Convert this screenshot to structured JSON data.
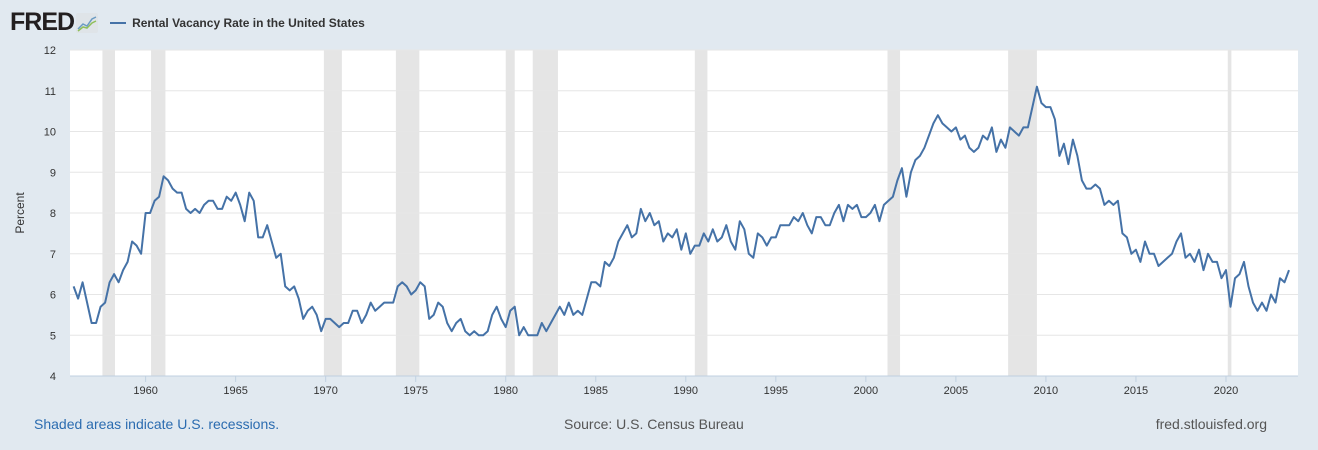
{
  "header": {
    "logo": "FRED",
    "legend_label": "Rental Vacancy Rate in the United States"
  },
  "footer": {
    "recessions": "Shaded areas indicate U.S. recessions.",
    "source": "Source: U.S. Census Bureau",
    "site": "fred.stlouisfed.org"
  },
  "colors": {
    "line": "#4572a7",
    "recession": "#e5e5e5",
    "background": "#e1e9f0"
  },
  "chart_data": {
    "type": "line",
    "title": "Rental Vacancy Rate in the United States",
    "ylabel": "Percent",
    "xlabel": "",
    "ylim": [
      4,
      12
    ],
    "xlim": [
      1955.8,
      2024.0
    ],
    "yticks": [
      4,
      5,
      6,
      7,
      8,
      9,
      10,
      11,
      12
    ],
    "xticks": [
      1960,
      1965,
      1970,
      1975,
      1980,
      1985,
      1990,
      1995,
      2000,
      2005,
      2010,
      2015,
      2020
    ],
    "grid": true,
    "start": 1956,
    "frequency": "quarterly",
    "recessions": [
      [
        1957.6,
        1958.3
      ],
      [
        1960.3,
        1961.1
      ],
      [
        1969.9,
        1970.9
      ],
      [
        1973.9,
        1975.2
      ],
      [
        1980.0,
        1980.5
      ],
      [
        1981.5,
        1982.9
      ],
      [
        1990.5,
        1991.2
      ],
      [
        2001.2,
        2001.9
      ],
      [
        2007.9,
        2009.5
      ],
      [
        2020.1,
        2020.3
      ]
    ],
    "series": [
      {
        "name": "Rental Vacancy Rate in the United States",
        "values": [
          6.2,
          5.9,
          6.3,
          5.8,
          5.3,
          5.3,
          5.7,
          5.8,
          6.3,
          6.5,
          6.3,
          6.6,
          6.8,
          7.3,
          7.2,
          7.0,
          8.0,
          8.0,
          8.3,
          8.4,
          8.9,
          8.8,
          8.6,
          8.5,
          8.5,
          8.1,
          8.0,
          8.1,
          8.0,
          8.2,
          8.3,
          8.3,
          8.1,
          8.1,
          8.4,
          8.3,
          8.5,
          8.2,
          7.8,
          8.5,
          8.3,
          7.4,
          7.4,
          7.7,
          7.3,
          6.9,
          7.0,
          6.2,
          6.1,
          6.2,
          5.9,
          5.4,
          5.6,
          5.7,
          5.5,
          5.1,
          5.4,
          5.4,
          5.3,
          5.2,
          5.3,
          5.3,
          5.6,
          5.6,
          5.3,
          5.5,
          5.8,
          5.6,
          5.7,
          5.8,
          5.8,
          5.8,
          6.2,
          6.3,
          6.2,
          6.0,
          6.1,
          6.3,
          6.2,
          5.4,
          5.5,
          5.8,
          5.7,
          5.3,
          5.1,
          5.3,
          5.4,
          5.1,
          5.0,
          5.1,
          5.0,
          5.0,
          5.1,
          5.5,
          5.7,
          5.4,
          5.2,
          5.6,
          5.7,
          5.0,
          5.2,
          5.0,
          5.0,
          5.0,
          5.3,
          5.1,
          5.3,
          5.5,
          5.7,
          5.5,
          5.8,
          5.5,
          5.6,
          5.5,
          5.9,
          6.3,
          6.3,
          6.2,
          6.8,
          6.7,
          6.9,
          7.3,
          7.5,
          7.7,
          7.4,
          7.5,
          8.1,
          7.8,
          8.0,
          7.7,
          7.8,
          7.3,
          7.5,
          7.4,
          7.6,
          7.1,
          7.5,
          7.0,
          7.2,
          7.2,
          7.5,
          7.3,
          7.6,
          7.3,
          7.4,
          7.7,
          7.3,
          7.1,
          7.8,
          7.6,
          7.0,
          6.9,
          7.5,
          7.4,
          7.2,
          7.4,
          7.4,
          7.7,
          7.7,
          7.7,
          7.9,
          7.8,
          8.0,
          7.7,
          7.5,
          7.9,
          7.9,
          7.7,
          7.7,
          8.0,
          8.2,
          7.8,
          8.2,
          8.1,
          8.2,
          7.9,
          7.9,
          8.0,
          8.2,
          7.8,
          8.2,
          8.3,
          8.4,
          8.8,
          9.1,
          8.4,
          9.0,
          9.3,
          9.4,
          9.6,
          9.9,
          10.2,
          10.4,
          10.2,
          10.1,
          10.0,
          10.1,
          9.8,
          9.9,
          9.6,
          9.5,
          9.6,
          9.9,
          9.8,
          10.1,
          9.5,
          9.8,
          9.6,
          10.1,
          10.0,
          9.9,
          10.1,
          10.1,
          10.6,
          11.1,
          10.7,
          10.6,
          10.6,
          10.3,
          9.4,
          9.7,
          9.2,
          9.8,
          9.4,
          8.8,
          8.6,
          8.6,
          8.7,
          8.6,
          8.2,
          8.3,
          8.2,
          8.3,
          7.5,
          7.4,
          7.0,
          7.1,
          6.8,
          7.3,
          7.0,
          7.0,
          6.7,
          6.8,
          6.9,
          7.0,
          7.3,
          7.5,
          6.9,
          7.0,
          6.8,
          7.1,
          6.6,
          7.0,
          6.8,
          6.8,
          6.4,
          6.6,
          5.7,
          6.4,
          6.5,
          6.8,
          6.2,
          5.8,
          5.6,
          5.8,
          5.6,
          6.0,
          5.8,
          6.4,
          6.3,
          6.6
        ]
      }
    ]
  }
}
